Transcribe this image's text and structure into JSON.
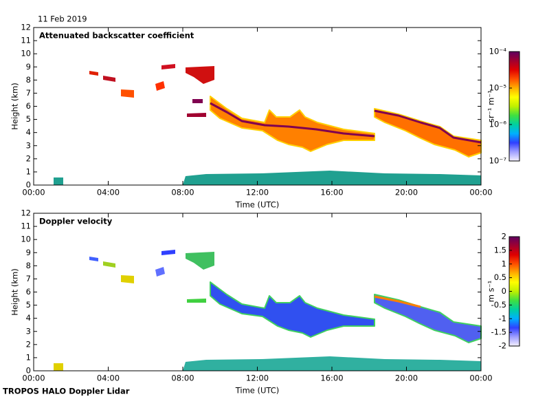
{
  "date": "11 Feb 2019",
  "footer": "TROPOS HALO Doppler Lidar",
  "chart_data": [
    {
      "type": "heatmap",
      "title": "Attenuated backscatter coefficient",
      "x_label": "Time (UTC)",
      "y_label": "Height (km)",
      "xlim": [
        0,
        24
      ],
      "xticks": [
        {
          "value": 0,
          "label": "00:00"
        },
        {
          "value": 4,
          "label": "04:00"
        },
        {
          "value": 8,
          "label": "08:00"
        },
        {
          "value": 12,
          "label": "12:00"
        },
        {
          "value": 16,
          "label": "16:00"
        },
        {
          "value": 20,
          "label": "20:00"
        },
        {
          "value": 24,
          "label": "00:00"
        }
      ],
      "ylim": [
        0,
        12
      ],
      "yticks": [
        0,
        1,
        2,
        3,
        4,
        5,
        6,
        7,
        8,
        9,
        10,
        11,
        12
      ],
      "colorbar": {
        "label": "sr⁻¹ m⁻¹",
        "log": true,
        "lim": [
          1e-07,
          0.0001
        ],
        "ticks": [
          {
            "value": 1e-07,
            "label": "10⁻⁷"
          },
          {
            "value": 1e-06,
            "label": "10⁻⁶"
          },
          {
            "value": 1e-05,
            "label": "10⁻⁵"
          },
          {
            "value": 0.0001,
            "label": "10⁻⁴"
          }
        ]
      },
      "colormap": [
        "#f4f0ff",
        "#a0a0ff",
        "#3040ff",
        "#00b0ff",
        "#00d0a0",
        "#40e040",
        "#c0f000",
        "#ffff00",
        "#ffb000",
        "#ff5000",
        "#e00000",
        "#a00030",
        "#600060"
      ]
    },
    {
      "type": "heatmap",
      "title": "Doppler velocity",
      "x_label": "Time (UTC)",
      "y_label": "Height (km)",
      "xlim": [
        0,
        24
      ],
      "xticks": [
        {
          "value": 0,
          "label": "00:00"
        },
        {
          "value": 4,
          "label": "04:00"
        },
        {
          "value": 8,
          "label": "08:00"
        },
        {
          "value": 12,
          "label": "12:00"
        },
        {
          "value": 16,
          "label": "16:00"
        },
        {
          "value": 20,
          "label": "20:00"
        },
        {
          "value": 24,
          "label": "00:00"
        }
      ],
      "ylim": [
        0,
        12
      ],
      "yticks": [
        0,
        1,
        2,
        3,
        4,
        5,
        6,
        7,
        8,
        9,
        10,
        11,
        12
      ],
      "colorbar": {
        "label": "m s⁻¹",
        "log": false,
        "lim": [
          -2,
          2
        ],
        "ticks": [
          -2,
          -1.5,
          -1,
          -0.5,
          0,
          0.5,
          1,
          1.5,
          2
        ]
      },
      "colormap": [
        "#f4f0ff",
        "#a0a0ff",
        "#3040ff",
        "#00b0ff",
        "#00d0a0",
        "#40e040",
        "#c0f000",
        "#ffff00",
        "#ffb000",
        "#ff5000",
        "#e00000",
        "#a00030",
        "#600060"
      ]
    }
  ]
}
